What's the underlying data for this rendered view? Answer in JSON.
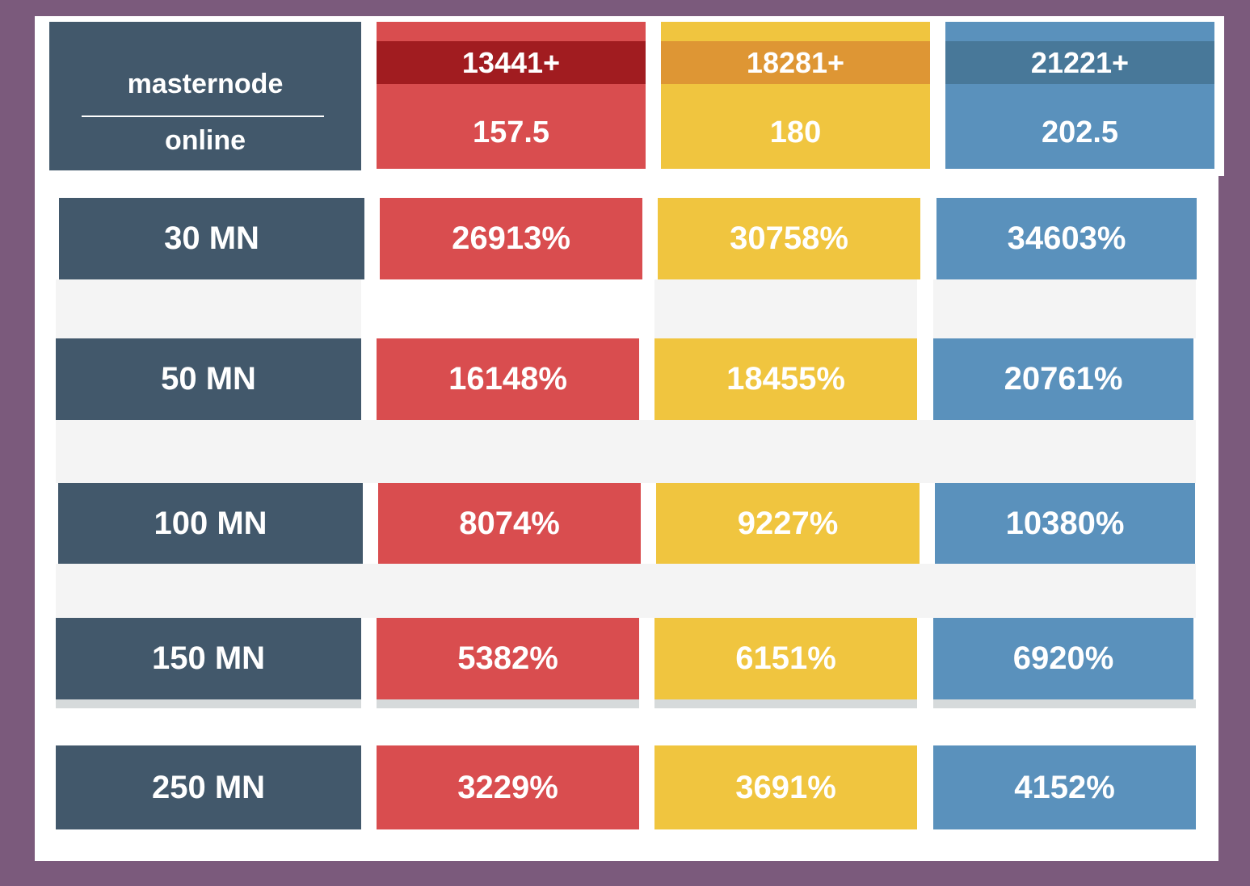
{
  "header": {
    "label_top": "masternode",
    "label_bottom": "online",
    "tiers": [
      {
        "threshold": "13441+",
        "reward": "157.5",
        "color": "#d94d4f"
      },
      {
        "threshold": "18281+",
        "reward": "180",
        "color": "#f0c53f"
      },
      {
        "threshold": "21221+",
        "reward": "202.5",
        "color": "#5a91bc"
      }
    ]
  },
  "rows": [
    {
      "label": "30 MN",
      "values": [
        "26913%",
        "30758%",
        "34603%"
      ]
    },
    {
      "label": "50 MN",
      "values": [
        "16148%",
        "18455%",
        "20761%"
      ]
    },
    {
      "label": "100 MN",
      "values": [
        "8074%",
        "9227%",
        "10380%"
      ]
    },
    {
      "label": "150 MN",
      "values": [
        "5382%",
        "6151%",
        "6920%"
      ]
    },
    {
      "label": "250 MN",
      "values": [
        "3229%",
        "3691%",
        "4152%"
      ]
    }
  ],
  "colors": {
    "background": "#7b5a7c",
    "label": "#42586b",
    "tier1": "#d94d4f",
    "tier2": "#f0c53f",
    "tier3": "#5a91bc"
  }
}
